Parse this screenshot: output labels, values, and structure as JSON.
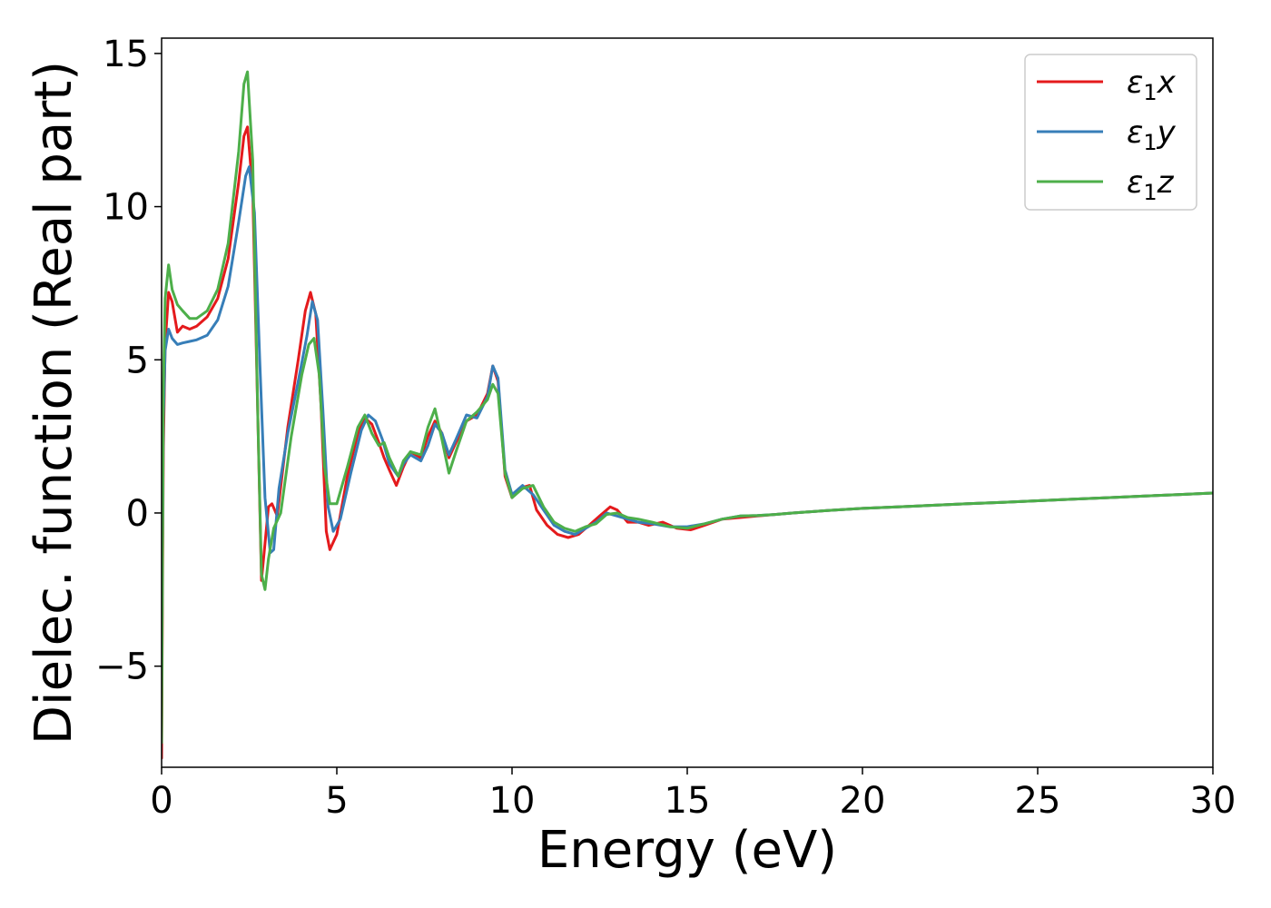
{
  "chart_data": {
    "type": "line",
    "title": "",
    "xlabel": "Energy (eV)",
    "ylabel": "Dielec. function (Real part)",
    "xlim": [
      0,
      30
    ],
    "ylim": [
      -8.3,
      15.5
    ],
    "xticks": [
      0,
      5,
      10,
      15,
      20,
      25,
      30
    ],
    "xtick_labels": [
      "0",
      "5",
      "10",
      "15",
      "20",
      "25",
      "30"
    ],
    "yticks": [
      -5,
      0,
      5,
      10,
      15
    ],
    "ytick_labels": [
      "−5",
      "0",
      "5",
      "10",
      "15"
    ],
    "grid": false,
    "legend": {
      "position": "top-right",
      "entries": [
        {
          "label": "ε₁x",
          "symbol": "ε",
          "sub": "1",
          "suffix": "x"
        },
        {
          "label": "ε₁y",
          "symbol": "ε",
          "sub": "1",
          "suffix": "y"
        },
        {
          "label": "ε₁z",
          "symbol": "ε",
          "sub": "1",
          "suffix": "z"
        }
      ]
    },
    "series": [
      {
        "name": "ε₁x",
        "color": "#e41a1c",
        "x": [
          0,
          0.05,
          0.1,
          0.2,
          0.3,
          0.45,
          0.6,
          0.8,
          1.0,
          1.3,
          1.6,
          1.9,
          2.2,
          2.35,
          2.45,
          2.6,
          2.75,
          2.85,
          2.95,
          3.05,
          3.15,
          3.3,
          3.6,
          3.9,
          4.1,
          4.25,
          4.4,
          4.55,
          4.7,
          4.8,
          5.0,
          5.3,
          5.6,
          5.8,
          6.0,
          6.2,
          6.35,
          6.5,
          6.7,
          6.9,
          7.1,
          7.4,
          7.6,
          7.8,
          8.0,
          8.2,
          8.4,
          8.7,
          9.0,
          9.3,
          9.45,
          9.6,
          9.8,
          10.0,
          10.2,
          10.5,
          10.7,
          11.0,
          11.3,
          11.6,
          11.9,
          12.2,
          12.5,
          12.8,
          13.0,
          13.3,
          13.6,
          13.9,
          14.3,
          14.7,
          15.1,
          15.5,
          16.0,
          16.5,
          17.0,
          17.5,
          18.0,
          19.0,
          20.0,
          21.0,
          22.0,
          23.0,
          24.0,
          25.0,
          26.0,
          27.0,
          28.0,
          29.0,
          30.0
        ],
        "values": [
          -8.0,
          2.0,
          5.5,
          7.2,
          6.9,
          5.9,
          6.1,
          6.0,
          6.1,
          6.4,
          7.0,
          8.3,
          10.8,
          12.3,
          12.6,
          10.5,
          3.0,
          -2.2,
          -1.0,
          0.2,
          0.3,
          -0.1,
          2.8,
          5.0,
          6.6,
          7.2,
          6.5,
          3.5,
          -0.6,
          -1.2,
          -0.7,
          1.2,
          2.6,
          3.1,
          2.9,
          2.3,
          1.8,
          1.4,
          0.9,
          1.5,
          2.0,
          1.8,
          2.5,
          3.0,
          2.6,
          1.8,
          2.3,
          3.0,
          3.2,
          3.9,
          4.8,
          4.3,
          1.2,
          0.5,
          0.8,
          0.9,
          0.1,
          -0.4,
          -0.7,
          -0.8,
          -0.7,
          -0.4,
          -0.1,
          0.2,
          0.1,
          -0.3,
          -0.3,
          -0.4,
          -0.3,
          -0.5,
          -0.55,
          -0.4,
          -0.2,
          -0.15,
          -0.1,
          -0.05,
          0.0,
          0.08,
          0.15,
          0.2,
          0.25,
          0.3,
          0.35,
          0.4,
          0.45,
          0.5,
          0.55,
          0.6,
          0.65
        ]
      },
      {
        "name": "ε₁y",
        "color": "#377eb8",
        "x": [
          0,
          0.05,
          0.1,
          0.2,
          0.3,
          0.45,
          0.6,
          0.8,
          1.0,
          1.3,
          1.6,
          1.9,
          2.2,
          2.4,
          2.5,
          2.65,
          2.8,
          2.95,
          3.1,
          3.2,
          3.35,
          3.6,
          3.9,
          4.15,
          4.3,
          4.45,
          4.6,
          4.75,
          4.9,
          5.1,
          5.4,
          5.7,
          5.9,
          6.1,
          6.3,
          6.5,
          6.75,
          6.9,
          7.1,
          7.4,
          7.6,
          7.8,
          8.0,
          8.2,
          8.4,
          8.7,
          9.0,
          9.3,
          9.45,
          9.6,
          9.8,
          10.0,
          10.3,
          10.6,
          10.9,
          11.2,
          11.5,
          11.8,
          12.1,
          12.4,
          12.7,
          13.0,
          13.3,
          13.6,
          14.0,
          14.5,
          15.0,
          15.5,
          16.0,
          16.5,
          17.0,
          17.5,
          18.0,
          19.0,
          20.0,
          21.0,
          22.0,
          23.0,
          24.0,
          25.0,
          26.0,
          27.0,
          28.0,
          29.0,
          30.0
        ],
        "values": [
          -6.0,
          3.0,
          5.3,
          6.0,
          5.7,
          5.5,
          5.55,
          5.6,
          5.65,
          5.8,
          6.3,
          7.4,
          9.5,
          11.0,
          11.3,
          9.8,
          5.0,
          0.5,
          -1.3,
          -1.2,
          0.8,
          2.6,
          4.3,
          5.8,
          6.9,
          6.3,
          3.4,
          0.2,
          -0.6,
          -0.2,
          1.3,
          2.7,
          3.2,
          3.0,
          2.4,
          1.6,
          1.2,
          1.6,
          1.9,
          1.7,
          2.2,
          2.9,
          2.6,
          1.9,
          2.4,
          3.2,
          3.1,
          3.8,
          4.8,
          4.4,
          1.4,
          0.6,
          0.9,
          0.6,
          0.1,
          -0.4,
          -0.6,
          -0.7,
          -0.5,
          -0.3,
          0.0,
          -0.1,
          -0.2,
          -0.3,
          -0.35,
          -0.45,
          -0.45,
          -0.35,
          -0.2,
          -0.1,
          -0.08,
          -0.05,
          0.0,
          0.08,
          0.15,
          0.2,
          0.25,
          0.3,
          0.35,
          0.4,
          0.45,
          0.5,
          0.55,
          0.6,
          0.65
        ]
      },
      {
        "name": "ε₁z",
        "color": "#4daf4a",
        "x": [
          0,
          0.05,
          0.1,
          0.2,
          0.3,
          0.45,
          0.6,
          0.8,
          1.0,
          1.3,
          1.6,
          1.9,
          2.2,
          2.35,
          2.45,
          2.6,
          2.75,
          2.85,
          2.95,
          3.05,
          3.2,
          3.4,
          3.7,
          4.0,
          4.2,
          4.35,
          4.5,
          4.65,
          4.8,
          5.0,
          5.3,
          5.6,
          5.8,
          6.0,
          6.2,
          6.35,
          6.5,
          6.75,
          6.9,
          7.1,
          7.4,
          7.6,
          7.8,
          8.0,
          8.2,
          8.4,
          8.7,
          9.0,
          9.3,
          9.45,
          9.6,
          9.8,
          10.0,
          10.3,
          10.6,
          10.9,
          11.2,
          11.5,
          11.8,
          12.1,
          12.4,
          12.7,
          13.0,
          13.3,
          13.6,
          14.0,
          14.5,
          15.0,
          15.5,
          16.0,
          16.5,
          17.0,
          17.5,
          18.0,
          19.0,
          20.0,
          21.0,
          22.0,
          23.0,
          24.0,
          25.0,
          26.0,
          27.0,
          28.0,
          29.0,
          30.0
        ],
        "values": [
          -7.5,
          4.0,
          7.0,
          8.1,
          7.3,
          6.8,
          6.6,
          6.35,
          6.35,
          6.6,
          7.3,
          8.8,
          11.8,
          14.0,
          14.4,
          11.5,
          3.0,
          -2.0,
          -2.5,
          -1.5,
          -0.5,
          0.0,
          2.5,
          4.5,
          5.5,
          5.7,
          4.5,
          1.5,
          0.3,
          0.3,
          1.5,
          2.8,
          3.2,
          2.6,
          2.2,
          2.3,
          1.8,
          1.2,
          1.7,
          2.0,
          1.9,
          2.8,
          3.4,
          2.4,
          1.3,
          2.0,
          3.0,
          3.3,
          3.7,
          4.2,
          3.9,
          1.3,
          0.5,
          0.8,
          0.9,
          0.2,
          -0.3,
          -0.5,
          -0.6,
          -0.45,
          -0.35,
          -0.05,
          0.0,
          -0.15,
          -0.2,
          -0.3,
          -0.45,
          -0.5,
          -0.35,
          -0.2,
          -0.1,
          -0.08,
          -0.05,
          0.0,
          0.08,
          0.15,
          0.2,
          0.25,
          0.3,
          0.35,
          0.4,
          0.45,
          0.5,
          0.55,
          0.6,
          0.65
        ]
      }
    ]
  }
}
